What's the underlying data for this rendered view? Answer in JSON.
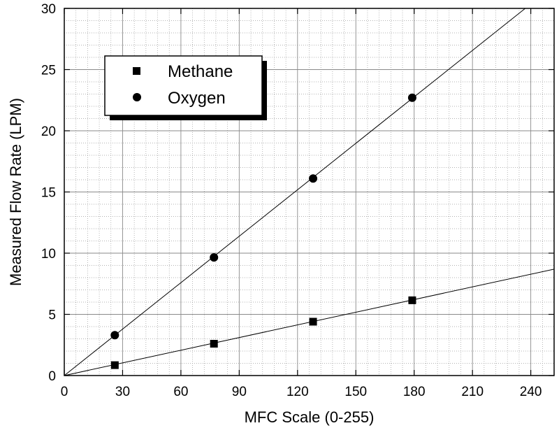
{
  "chart_data": {
    "type": "scatter",
    "xlabel": "MFC Scale (0-255)",
    "ylabel": "Measured Flow Rate (LPM)",
    "xlim": [
      0,
      252
    ],
    "ylim": [
      0,
      30
    ],
    "xticks": [
      0,
      30,
      60,
      90,
      120,
      150,
      180,
      210,
      240
    ],
    "yticks": [
      0,
      5,
      10,
      15,
      20,
      25,
      30
    ],
    "x_minor_step": 6,
    "y_minor_step": 1,
    "grid": true,
    "legend_position": "top-left",
    "series": [
      {
        "name": "Methane",
        "marker": "square",
        "x": [
          26,
          77,
          128,
          179
        ],
        "y": [
          0.85,
          2.6,
          4.4,
          6.15
        ],
        "fit_slope": 0.0345
      },
      {
        "name": "Oxygen",
        "marker": "circle",
        "x": [
          26,
          77,
          128,
          179
        ],
        "y": [
          3.3,
          9.65,
          16.1,
          22.7
        ],
        "fit_slope": 0.1265
      }
    ],
    "colors": {
      "marker": "#000000",
      "fit_line": "#000000",
      "grid": "#9a9a9a",
      "axis": "#000000"
    }
  }
}
